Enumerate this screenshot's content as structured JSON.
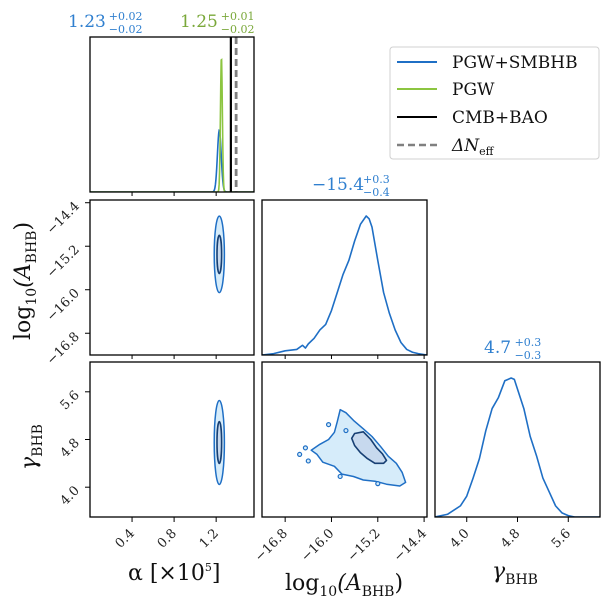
{
  "chart_data": {
    "type": "corner",
    "parameters": [
      {
        "key": "alpha",
        "label": "α [×10⁵]",
        "range": [
          0.0,
          1.56
        ],
        "ticks": [
          0.4,
          0.8,
          1.2
        ],
        "tick_labels": [
          "0.4",
          "0.8",
          "1.2"
        ]
      },
      {
        "key": "logA",
        "label": "log₁₀(A_BHB)",
        "range": [
          -17.2,
          -14.35
        ],
        "ticks": [
          -16.8,
          -16.0,
          -15.2,
          -14.4
        ],
        "tick_labels": [
          "−16.8",
          "−16.0",
          "−15.2",
          "−14.4"
        ]
      },
      {
        "key": "gamma",
        "label": "γ_BHB",
        "range": [
          3.5,
          6.1
        ],
        "ticks": [
          4.0,
          4.8,
          5.6
        ],
        "tick_labels": [
          "4.0",
          "4.8",
          "5.6"
        ]
      }
    ],
    "titles": [
      [
        {
          "median": "1.23",
          "plus": "+0.02",
          "minus": "−0.02",
          "color": "#2f7fcf"
        },
        {
          "median": "1.25",
          "plus": "+0.01",
          "minus": "−0.02",
          "color": "#7aa83a"
        }
      ],
      [
        {
          "median": "−15.4",
          "plus": "+0.3",
          "minus": "−0.4",
          "color": "#2f7fcf"
        }
      ],
      [
        {
          "median": "4.7",
          "plus": "+0.3",
          "minus": "−0.3",
          "color": "#2f7fcf"
        }
      ]
    ],
    "series": [
      {
        "name": "PGW+SMBHB",
        "color": "#1f6fc5",
        "style": "solid"
      },
      {
        "name": "PGW",
        "color": "#8cc540",
        "style": "solid"
      },
      {
        "name": "CMB+BAO",
        "color": "#000000",
        "style": "solid"
      },
      {
        "name": "ΔN_eff",
        "color": "#808080",
        "style": "dashed"
      }
    ],
    "vertical_limits": {
      "CMB+BAO": 1.34,
      "ΔN_eff": 1.39
    },
    "marginals": {
      "alpha": {
        "PGW+SMBHB": {
          "mean": 1.23,
          "sigma": 0.018,
          "peak": 0.42
        },
        "PGW": {
          "mean": 1.25,
          "sigma": 0.009,
          "peak": 0.92
        }
      },
      "logA": {
        "PGW+SMBHB": {
          "x": [
            -17.2,
            -17.0,
            -16.8,
            -16.6,
            -16.5,
            -16.45,
            -16.4,
            -16.3,
            -16.2,
            -16.1,
            -16.0,
            -15.9,
            -15.8,
            -15.7,
            -15.6,
            -15.5,
            -15.4,
            -15.35,
            -15.3,
            -15.2,
            -15.1,
            -15.0,
            -14.9,
            -14.8,
            -14.7,
            -14.6,
            -14.5,
            -14.35
          ],
          "y": [
            0.0,
            0.01,
            0.03,
            0.04,
            0.07,
            0.05,
            0.08,
            0.12,
            0.18,
            0.22,
            0.32,
            0.45,
            0.58,
            0.68,
            0.82,
            0.94,
            1.0,
            0.98,
            0.92,
            0.68,
            0.45,
            0.3,
            0.18,
            0.09,
            0.04,
            0.02,
            0.01,
            0.0
          ]
        }
      },
      "gamma": {
        "PGW+SMBHB": {
          "x": [
            3.5,
            3.7,
            3.9,
            4.0,
            4.1,
            4.2,
            4.3,
            4.4,
            4.5,
            4.6,
            4.7,
            4.75,
            4.8,
            4.9,
            5.0,
            5.1,
            5.2,
            5.3,
            5.4,
            5.5,
            5.6,
            5.7,
            5.8,
            6.1
          ],
          "y": [
            0.0,
            0.02,
            0.08,
            0.15,
            0.28,
            0.42,
            0.62,
            0.78,
            0.86,
            0.98,
            1.0,
            0.99,
            0.92,
            0.78,
            0.58,
            0.44,
            0.28,
            0.18,
            0.08,
            0.03,
            0.01,
            0.0,
            0.0,
            0.0
          ]
        }
      }
    },
    "contours_2d": {
      "alpha_logA": {
        "center": [
          1.23,
          -15.35
        ],
        "sigma": [
          0.022,
          0.32
        ],
        "levels": [
          "1σ",
          "2σ"
        ]
      },
      "alpha_gamma": {
        "center": [
          1.23,
          4.75
        ],
        "sigma": [
          0.022,
          0.32
        ],
        "levels": [
          "1σ",
          "2σ"
        ]
      },
      "logA_gamma": {
        "outer": [
          [
            -15.85,
            5.3
          ],
          [
            -15.75,
            5.25
          ],
          [
            -15.62,
            5.12
          ],
          [
            -15.45,
            4.98
          ],
          [
            -15.3,
            4.85
          ],
          [
            -15.15,
            4.68
          ],
          [
            -15.02,
            4.52
          ],
          [
            -14.88,
            4.4
          ],
          [
            -14.78,
            4.25
          ],
          [
            -14.72,
            4.08
          ],
          [
            -14.82,
            4.02
          ],
          [
            -15.05,
            4.05
          ],
          [
            -15.25,
            4.1
          ],
          [
            -15.45,
            4.12
          ],
          [
            -15.62,
            4.18
          ],
          [
            -15.82,
            4.22
          ],
          [
            -15.95,
            4.35
          ],
          [
            -16.15,
            4.42
          ],
          [
            -16.25,
            4.55
          ],
          [
            -16.35,
            4.62
          ],
          [
            -16.2,
            4.72
          ],
          [
            -16.05,
            4.8
          ],
          [
            -15.95,
            4.92
          ],
          [
            -15.9,
            5.1
          ]
        ],
        "inner": [
          [
            -15.6,
            4.9
          ],
          [
            -15.45,
            4.93
          ],
          [
            -15.32,
            4.8
          ],
          [
            -15.22,
            4.66
          ],
          [
            -15.12,
            4.56
          ],
          [
            -15.05,
            4.45
          ],
          [
            -15.1,
            4.4
          ],
          [
            -15.25,
            4.4
          ],
          [
            -15.38,
            4.48
          ],
          [
            -15.5,
            4.58
          ],
          [
            -15.6,
            4.7
          ],
          [
            -15.65,
            4.82
          ]
        ],
        "islands": [
          [
            -16.05,
            5.05
          ],
          [
            -16.45,
            4.66
          ],
          [
            -16.55,
            4.55
          ],
          [
            -16.4,
            4.44
          ],
          [
            -15.85,
            4.18
          ],
          [
            -15.2,
            4.06
          ],
          [
            -15.75,
            4.95
          ]
        ]
      }
    }
  },
  "legend": {
    "items": [
      {
        "label": "PGW+SMBHB",
        "color": "#1f6fc5",
        "dash": false
      },
      {
        "label": "PGW",
        "color": "#8cc540",
        "dash": false
      },
      {
        "label": "CMB+BAO",
        "color": "#000000",
        "dash": false
      },
      {
        "label": "ΔN",
        "sub": "eff",
        "color": "#808080",
        "dash": true
      }
    ]
  },
  "axis_labels": {
    "x": [
      {
        "main": "α [×10",
        "sup": "5",
        "tail": "]"
      },
      {
        "main": "log",
        "sub": "10",
        "mid": "(A",
        "sub2": "BHB",
        "tail": ")"
      },
      {
        "main": "γ",
        "sub": "BHB"
      }
    ],
    "y": [
      {
        "main": "log",
        "sub": "10",
        "mid": "(A",
        "sub2": "BHB",
        "tail": ")"
      },
      {
        "main": "γ",
        "sub": "BHB"
      }
    ]
  }
}
